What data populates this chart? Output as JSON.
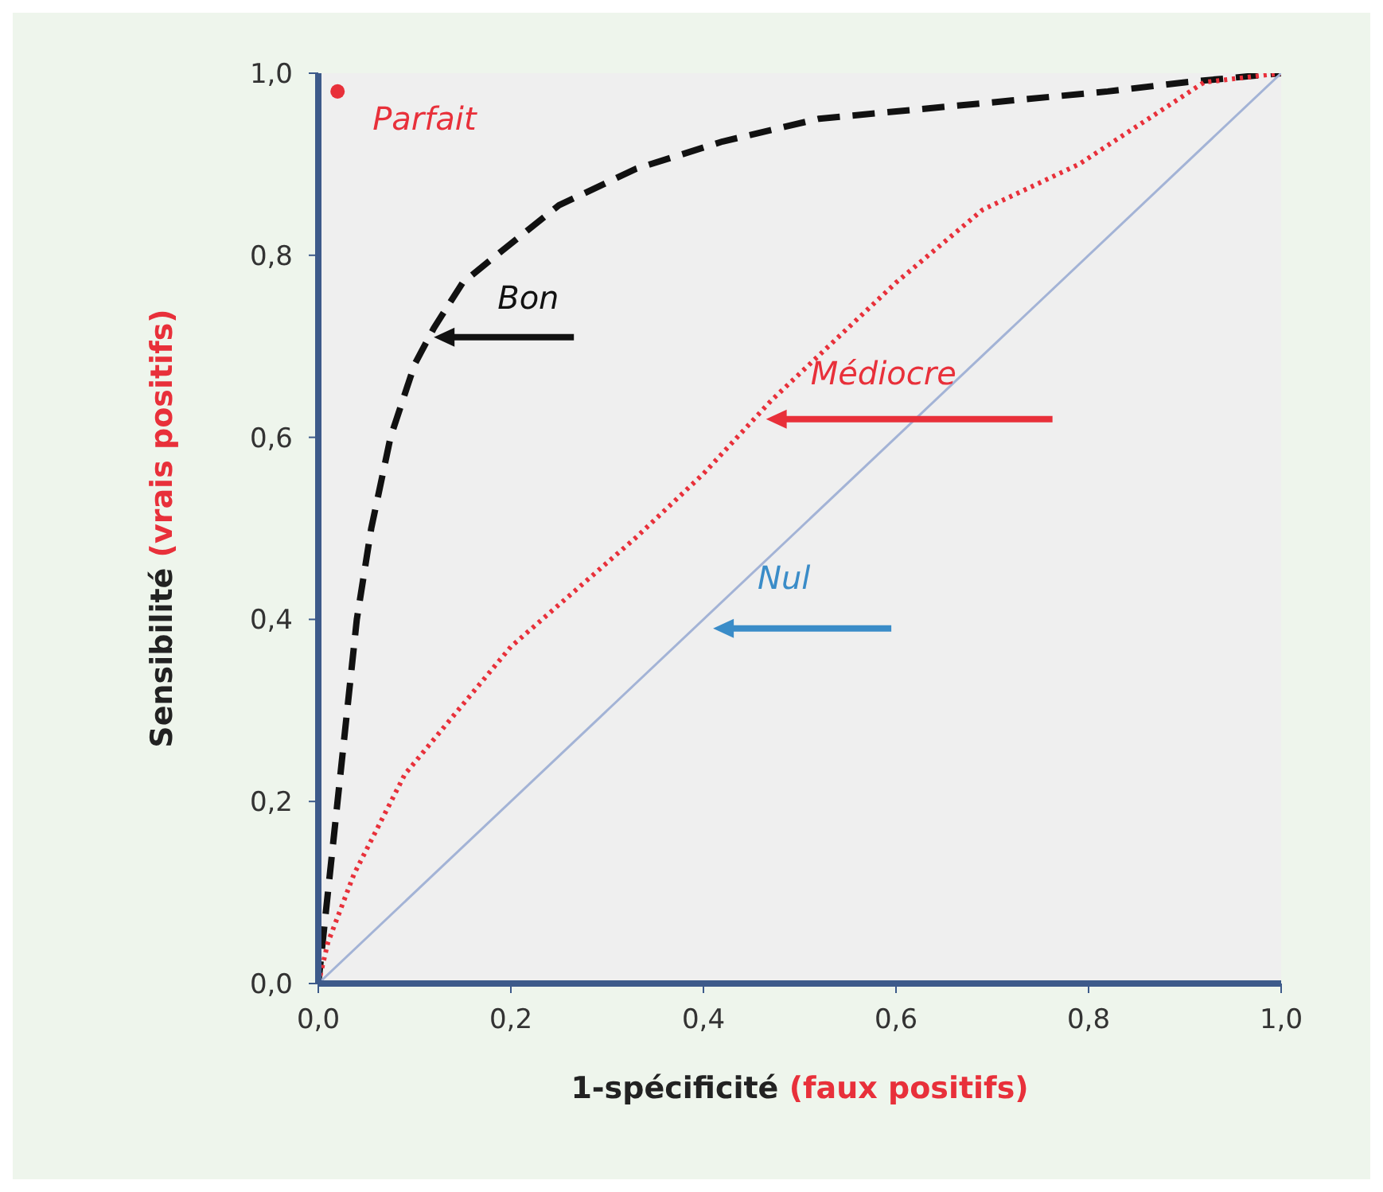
{
  "chart_data": {
    "type": "line",
    "xlabel": "1-spécificité (faux positifs)",
    "ylabel": "Sensibilité (vrais positifs)",
    "xlim": [
      0,
      1
    ],
    "ylim": [
      0,
      1
    ],
    "xticks": [
      {
        "value": 0,
        "label": "0,0"
      },
      {
        "value": 0.2,
        "label": "0,2"
      },
      {
        "value": 0.4,
        "label": "0,4"
      },
      {
        "value": 0.6,
        "label": "0,6"
      },
      {
        "value": 0.8,
        "label": "0,8"
      },
      {
        "value": 1,
        "label": "1,0"
      }
    ],
    "yticks": [
      {
        "value": 0,
        "label": "0,0"
      },
      {
        "value": 0.2,
        "label": "0,2"
      },
      {
        "value": 0.4,
        "label": "0,4"
      },
      {
        "value": 0.6,
        "label": "0,6"
      },
      {
        "value": 0.8,
        "label": "0,8"
      },
      {
        "value": 1,
        "label": "1,0"
      }
    ],
    "grid": false,
    "legend": false,
    "marker": "none",
    "series": [
      {
        "color": "#111111",
        "line_style": "dashed",
        "x": [
          0,
          0.01,
          0.02,
          0.03,
          0.04,
          0.055,
          0.075,
          0.1,
          0.12,
          0.15,
          0.185,
          0.25,
          0.33,
          0.42,
          0.52,
          0.62,
          0.72,
          0.82,
          0.9,
          1
        ],
        "values": [
          0,
          0.1,
          0.2,
          0.3,
          0.4,
          0.5,
          0.6,
          0.68,
          0.72,
          0.77,
          0.8,
          0.855,
          0.895,
          0.925,
          0.95,
          0.96,
          0.97,
          0.98,
          0.99,
          1
        ]
      },
      {
        "color": "#e8303a",
        "line_style": "dotted",
        "x": [
          0,
          0.01,
          0.037,
          0.09,
          0.2,
          0.33,
          0.4,
          0.47,
          0.54,
          0.6,
          0.69,
          0.79,
          0.92,
          1
        ],
        "values": [
          0,
          0.045,
          0.12,
          0.23,
          0.37,
          0.49,
          0.56,
          0.64,
          0.71,
          0.77,
          0.85,
          0.9,
          0.99,
          1
        ]
      },
      {
        "color": "#a3b3d6",
        "line_style": "solid",
        "x": [
          0,
          1
        ],
        "values": [
          0,
          1
        ]
      },
      {
        "type": "scatter",
        "color": "#e8303a",
        "marker": "circle",
        "x": [
          0.02
        ],
        "values": [
          0.98
        ]
      }
    ],
    "annotations": [
      {
        "text": "Parfait",
        "x": 0.02,
        "y": 0.98
      },
      {
        "text": "Bon",
        "x": 0.12,
        "y": 0.71
      },
      "Médiocre",
      "Nul"
    ]
  }
}
